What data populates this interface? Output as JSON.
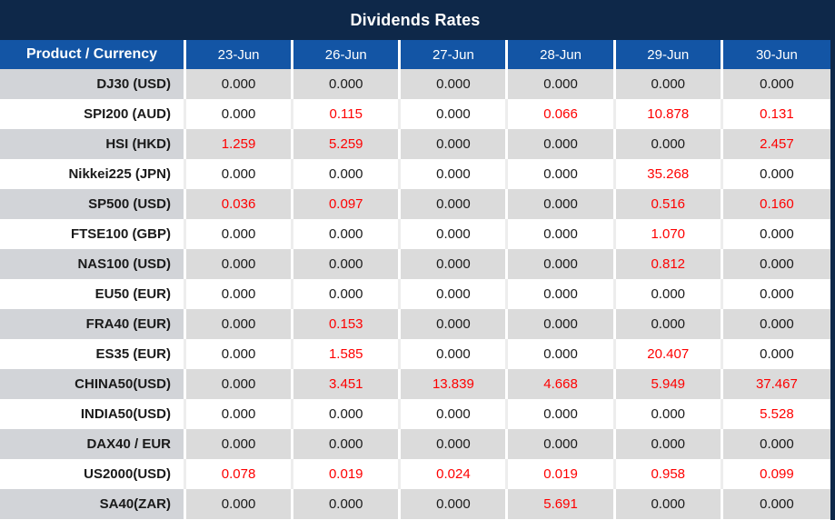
{
  "title": "Dividends Rates",
  "colors": {
    "title_bg": "#0E2849",
    "header_bg": "#1355A5",
    "row_gray": "#DBDBDB",
    "product_col_gray": "#D2D4D8",
    "value_red": "#FE0000",
    "value_black": "#1A1A1A"
  },
  "chart_data": {
    "type": "table",
    "title": "Dividends Rates",
    "columns": [
      "Product / Currency",
      "23-Jun",
      "26-Jun",
      "27-Jun",
      "28-Jun",
      "29-Jun",
      "30-Jun"
    ],
    "rows": [
      [
        "DJ30 (USD)",
        "0.000",
        "0.000",
        "0.000",
        "0.000",
        "0.000",
        "0.000"
      ],
      [
        "SPI200 (AUD)",
        "0.000",
        "0.115",
        "0.000",
        "0.066",
        "10.878",
        "0.131"
      ],
      [
        "HSI (HKD)",
        "1.259",
        "5.259",
        "0.000",
        "0.000",
        "0.000",
        "2.457"
      ],
      [
        "Nikkei225 (JPN)",
        "0.000",
        "0.000",
        "0.000",
        "0.000",
        "35.268",
        "0.000"
      ],
      [
        "SP500 (USD)",
        "0.036",
        "0.097",
        "0.000",
        "0.000",
        "0.516",
        "0.160"
      ],
      [
        "FTSE100 (GBP)",
        "0.000",
        "0.000",
        "0.000",
        "0.000",
        "1.070",
        "0.000"
      ],
      [
        "NAS100 (USD)",
        "0.000",
        "0.000",
        "0.000",
        "0.000",
        "0.812",
        "0.000"
      ],
      [
        "EU50 (EUR)",
        "0.000",
        "0.000",
        "0.000",
        "0.000",
        "0.000",
        "0.000"
      ],
      [
        "FRA40 (EUR)",
        "0.000",
        "0.153",
        "0.000",
        "0.000",
        "0.000",
        "0.000"
      ],
      [
        "ES35 (EUR)",
        "0.000",
        "1.585",
        "0.000",
        "0.000",
        "20.407",
        "0.000"
      ],
      [
        "CHINA50(USD)",
        "0.000",
        "3.451",
        "13.839",
        "4.668",
        "5.949",
        "37.467"
      ],
      [
        "INDIA50(USD)",
        "0.000",
        "0.000",
        "0.000",
        "0.000",
        "0.000",
        "5.528"
      ],
      [
        "DAX40 / EUR",
        "0.000",
        "0.000",
        "0.000",
        "0.000",
        "0.000",
        "0.000"
      ],
      [
        "US2000(USD)",
        "0.078",
        "0.019",
        "0.024",
        "0.019",
        "0.958",
        "0.099"
      ],
      [
        "SA40(ZAR)",
        "0.000",
        "0.000",
        "0.000",
        "5.691",
        "0.000",
        "0.000"
      ]
    ]
  },
  "table": {
    "product_header": "Product / Currency",
    "date_headers": [
      "23-Jun",
      "26-Jun",
      "27-Jun",
      "28-Jun",
      "29-Jun",
      "30-Jun"
    ],
    "rows": [
      {
        "product": "DJ30 (USD)",
        "values": [
          "0.000",
          "0.000",
          "0.000",
          "0.000",
          "0.000",
          "0.000"
        ],
        "red": [
          0,
          0,
          0,
          0,
          0,
          0
        ]
      },
      {
        "product": "SPI200 (AUD)",
        "values": [
          "0.000",
          "0.115",
          "0.000",
          "0.066",
          "10.878",
          "0.131"
        ],
        "red": [
          0,
          1,
          0,
          1,
          1,
          1
        ]
      },
      {
        "product": "HSI (HKD)",
        "values": [
          "1.259",
          "5.259",
          "0.000",
          "0.000",
          "0.000",
          "2.457"
        ],
        "red": [
          1,
          1,
          0,
          0,
          0,
          1
        ]
      },
      {
        "product": "Nikkei225 (JPN)",
        "values": [
          "0.000",
          "0.000",
          "0.000",
          "0.000",
          "35.268",
          "0.000"
        ],
        "red": [
          0,
          0,
          0,
          0,
          1,
          0
        ]
      },
      {
        "product": "SP500 (USD)",
        "values": [
          "0.036",
          "0.097",
          "0.000",
          "0.000",
          "0.516",
          "0.160"
        ],
        "red": [
          1,
          1,
          0,
          0,
          1,
          1
        ]
      },
      {
        "product": "FTSE100 (GBP)",
        "values": [
          "0.000",
          "0.000",
          "0.000",
          "0.000",
          "1.070",
          "0.000"
        ],
        "red": [
          0,
          0,
          0,
          0,
          1,
          0
        ]
      },
      {
        "product": "NAS100 (USD)",
        "values": [
          "0.000",
          "0.000",
          "0.000",
          "0.000",
          "0.812",
          "0.000"
        ],
        "red": [
          0,
          0,
          0,
          0,
          1,
          0
        ]
      },
      {
        "product": "EU50 (EUR)",
        "values": [
          "0.000",
          "0.000",
          "0.000",
          "0.000",
          "0.000",
          "0.000"
        ],
        "red": [
          0,
          0,
          0,
          0,
          0,
          0
        ]
      },
      {
        "product": "FRA40 (EUR)",
        "values": [
          "0.000",
          "0.153",
          "0.000",
          "0.000",
          "0.000",
          "0.000"
        ],
        "red": [
          0,
          1,
          0,
          0,
          0,
          0
        ]
      },
      {
        "product": "ES35 (EUR)",
        "values": [
          "0.000",
          "1.585",
          "0.000",
          "0.000",
          "20.407",
          "0.000"
        ],
        "red": [
          0,
          1,
          0,
          0,
          1,
          0
        ]
      },
      {
        "product": "CHINA50(USD)",
        "values": [
          "0.000",
          "3.451",
          "13.839",
          "4.668",
          "5.949",
          "37.467"
        ],
        "red": [
          0,
          1,
          1,
          1,
          1,
          1
        ]
      },
      {
        "product": "INDIA50(USD)",
        "values": [
          "0.000",
          "0.000",
          "0.000",
          "0.000",
          "0.000",
          "5.528"
        ],
        "red": [
          0,
          0,
          0,
          0,
          0,
          1
        ]
      },
      {
        "product": "DAX40 / EUR",
        "values": [
          "0.000",
          "0.000",
          "0.000",
          "0.000",
          "0.000",
          "0.000"
        ],
        "red": [
          0,
          0,
          0,
          0,
          0,
          0
        ]
      },
      {
        "product": "US2000(USD)",
        "values": [
          "0.078",
          "0.019",
          "0.024",
          "0.019",
          "0.958",
          "0.099"
        ],
        "red": [
          1,
          1,
          1,
          1,
          1,
          1
        ]
      },
      {
        "product": "SA40(ZAR)",
        "values": [
          "0.000",
          "0.000",
          "0.000",
          "5.691",
          "0.000",
          "0.000"
        ],
        "red": [
          0,
          0,
          0,
          1,
          0,
          0
        ]
      }
    ]
  }
}
